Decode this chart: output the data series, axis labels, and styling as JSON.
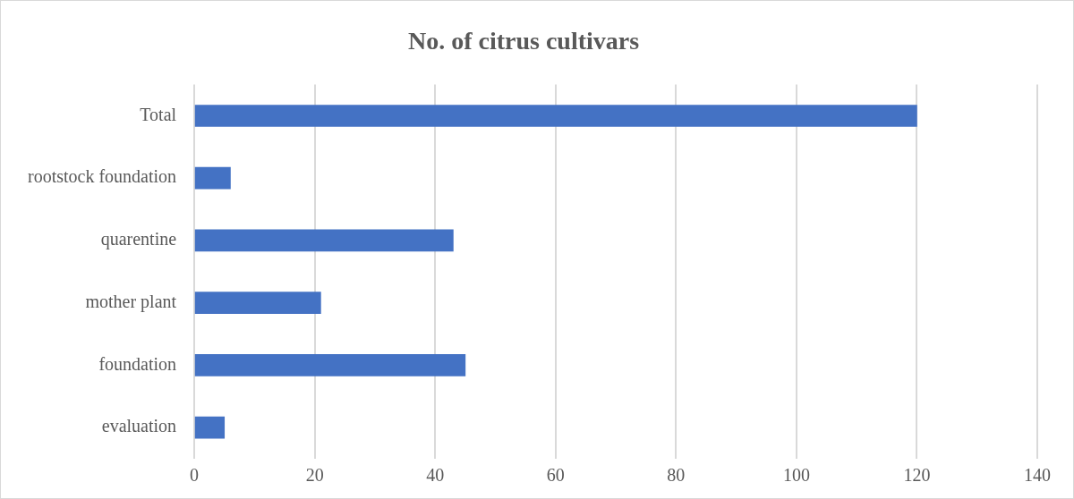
{
  "chart_data": {
    "type": "bar",
    "title": "No. of citrus cultivars",
    "orientation": "horizontal",
    "categories": [
      "Total",
      "rootstock foundation",
      "quarentine",
      "mother plant",
      "foundation",
      "evaluation"
    ],
    "values": [
      120,
      6,
      43,
      21,
      45,
      5
    ],
    "color": "#4472c4",
    "xlim": [
      0,
      140
    ],
    "xticks": [
      0,
      20,
      40,
      60,
      80,
      100,
      120,
      140
    ],
    "grid": "x",
    "legend": false
  }
}
